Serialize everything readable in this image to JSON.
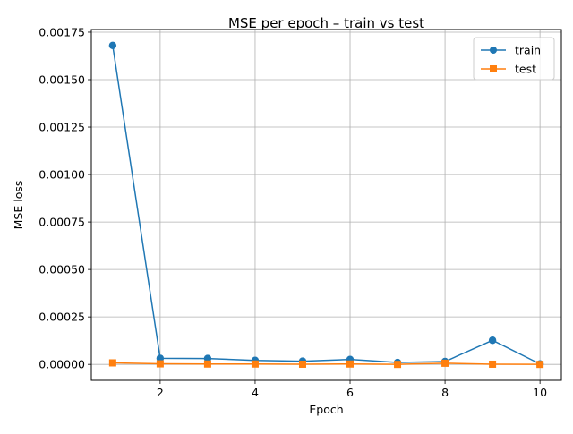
{
  "chart_data": {
    "type": "line",
    "title": "MSE per epoch – train vs test",
    "xlabel": "Epoch",
    "ylabel": "MSE loss",
    "x": [
      1,
      2,
      3,
      4,
      5,
      6,
      7,
      8,
      9,
      10
    ],
    "xlim": [
      0.55,
      10.45
    ],
    "ylim": [
      -8.4e-05,
      0.001764
    ],
    "xticks": [
      2,
      4,
      6,
      8,
      10
    ],
    "xtick_labels": [
      "2",
      "4",
      "6",
      "8",
      "10"
    ],
    "yticks": [
      0,
      0.00025,
      0.0005,
      0.00075,
      0.001,
      0.00125,
      0.0015,
      0.00175
    ],
    "ytick_labels": [
      "0.00000",
      "0.00025",
      "0.00050",
      "0.00075",
      "0.00100",
      "0.00125",
      "0.00150",
      "0.00175"
    ],
    "grid": true,
    "legend_position": "top-right",
    "series": [
      {
        "name": "train",
        "color": "#1f77b4",
        "marker": "circle",
        "values": [
          0.00168,
          3.2e-05,
          3.1e-05,
          2.1e-05,
          1.7e-05,
          2.6e-05,
          1e-05,
          1.5e-05,
          0.000127,
          2e-06
        ]
      },
      {
        "name": "test",
        "color": "#ff7f0e",
        "marker": "square",
        "values": [
          8e-06,
          3e-06,
          2e-06,
          2e-06,
          1e-06,
          2e-06,
          0.0,
          6e-06,
          1e-06,
          0.0
        ]
      }
    ]
  }
}
